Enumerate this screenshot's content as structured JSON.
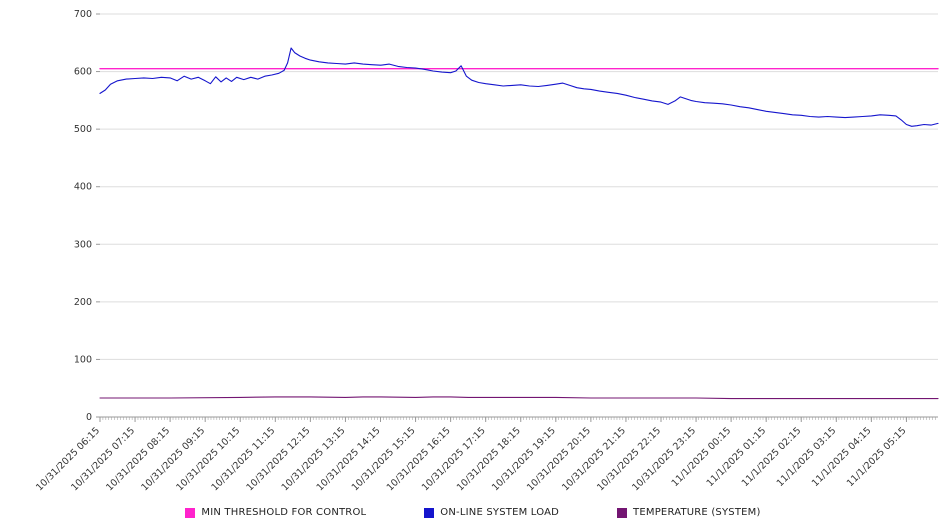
{
  "chart_data": {
    "type": "line",
    "title": "",
    "xlabel": "",
    "ylabel": "",
    "ylim": [
      0,
      700
    ],
    "yticks": [
      0,
      100,
      200,
      300,
      400,
      500,
      600,
      700
    ],
    "grid": "horizontal",
    "legend_position": "bottom",
    "x_range_hours": [
      0,
      23.9
    ],
    "minor_tick_interval_hours": 0.0833,
    "x_tick_positions_hours": [
      0,
      1,
      2,
      3,
      4,
      5,
      6,
      7,
      8,
      9,
      10,
      11,
      12,
      13,
      14,
      15,
      16,
      17,
      18,
      19,
      20,
      21,
      22,
      23
    ],
    "x_tick_labels": [
      "10/31/2025 06:15",
      "10/31/2025 07:15",
      "10/31/2025 08:15",
      "10/31/2025 09:15",
      "10/31/2025 10:15",
      "10/31/2025 11:15",
      "10/31/2025 12:15",
      "10/31/2025 13:15",
      "10/31/2025 14:15",
      "10/31/2025 15:15",
      "10/31/2025 16:15",
      "10/31/2025 17:15",
      "10/31/2025 18:15",
      "10/31/2025 19:15",
      "10/31/2025 20:15",
      "10/31/2025 21:15",
      "10/31/2025 22:15",
      "10/31/2025 23:15",
      "11/1/2025 00:15",
      "11/1/2025 01:15",
      "11/1/2025 02:15",
      "11/1/2025 03:15",
      "11/1/2025 04:15",
      "11/1/2025 05:15"
    ],
    "colors": {
      "grid": "#dddddd",
      "axis": "#999999",
      "text": "#333333"
    },
    "series": [
      {
        "name": "MIN THRESHOLD FOR CONTROL",
        "color": "#ff22cc",
        "width": 1.3,
        "points": [
          [
            0,
            605
          ],
          [
            23.9,
            605
          ]
        ]
      },
      {
        "name": "ON-LINE SYSTEM LOAD",
        "color": "#1515cd",
        "width": 1.1,
        "points": [
          [
            0,
            562
          ],
          [
            0.15,
            568
          ],
          [
            0.3,
            578
          ],
          [
            0.5,
            584
          ],
          [
            0.75,
            587
          ],
          [
            1,
            588
          ],
          [
            1.25,
            589
          ],
          [
            1.5,
            588
          ],
          [
            1.75,
            590
          ],
          [
            2,
            589
          ],
          [
            2.2,
            584
          ],
          [
            2.4,
            592
          ],
          [
            2.6,
            587
          ],
          [
            2.8,
            590
          ],
          [
            3,
            584
          ],
          [
            3.15,
            579
          ],
          [
            3.3,
            591
          ],
          [
            3.45,
            582
          ],
          [
            3.6,
            589
          ],
          [
            3.75,
            583
          ],
          [
            3.9,
            590
          ],
          [
            4.1,
            586
          ],
          [
            4.3,
            590
          ],
          [
            4.5,
            587
          ],
          [
            4.7,
            592
          ],
          [
            4.9,
            594
          ],
          [
            5.1,
            597
          ],
          [
            5.25,
            602
          ],
          [
            5.35,
            615
          ],
          [
            5.45,
            641
          ],
          [
            5.55,
            633
          ],
          [
            5.7,
            627
          ],
          [
            5.85,
            623
          ],
          [
            6,
            620
          ],
          [
            6.25,
            617
          ],
          [
            6.5,
            615
          ],
          [
            6.75,
            614
          ],
          [
            7,
            613
          ],
          [
            7.25,
            615
          ],
          [
            7.5,
            613
          ],
          [
            7.75,
            612
          ],
          [
            8,
            611
          ],
          [
            8.25,
            613
          ],
          [
            8.5,
            609
          ],
          [
            8.75,
            607
          ],
          [
            9,
            606
          ],
          [
            9.25,
            604
          ],
          [
            9.5,
            601
          ],
          [
            9.75,
            599
          ],
          [
            10,
            598
          ],
          [
            10.15,
            601
          ],
          [
            10.3,
            610
          ],
          [
            10.45,
            592
          ],
          [
            10.6,
            585
          ],
          [
            10.8,
            581
          ],
          [
            11,
            579
          ],
          [
            11.25,
            577
          ],
          [
            11.5,
            575
          ],
          [
            11.75,
            576
          ],
          [
            12,
            577
          ],
          [
            12.25,
            575
          ],
          [
            12.5,
            574
          ],
          [
            12.75,
            576
          ],
          [
            13,
            578
          ],
          [
            13.2,
            580
          ],
          [
            13.4,
            576
          ],
          [
            13.6,
            572
          ],
          [
            13.8,
            570
          ],
          [
            14,
            569
          ],
          [
            14.25,
            566
          ],
          [
            14.5,
            564
          ],
          [
            14.75,
            562
          ],
          [
            15,
            559
          ],
          [
            15.25,
            555
          ],
          [
            15.5,
            552
          ],
          [
            15.75,
            549
          ],
          [
            16,
            547
          ],
          [
            16.2,
            543
          ],
          [
            16.4,
            549
          ],
          [
            16.55,
            556
          ],
          [
            16.7,
            553
          ],
          [
            16.85,
            550
          ],
          [
            17,
            548
          ],
          [
            17.25,
            546
          ],
          [
            17.5,
            545
          ],
          [
            17.75,
            544
          ],
          [
            18,
            542
          ],
          [
            18.25,
            539
          ],
          [
            18.5,
            537
          ],
          [
            18.75,
            534
          ],
          [
            19,
            531
          ],
          [
            19.25,
            529
          ],
          [
            19.5,
            527
          ],
          [
            19.75,
            525
          ],
          [
            20,
            524
          ],
          [
            20.25,
            522
          ],
          [
            20.5,
            521
          ],
          [
            20.75,
            522
          ],
          [
            21,
            521
          ],
          [
            21.25,
            520
          ],
          [
            21.5,
            521
          ],
          [
            21.75,
            522
          ],
          [
            22,
            523
          ],
          [
            22.25,
            525
          ],
          [
            22.5,
            524
          ],
          [
            22.7,
            523
          ],
          [
            22.85,
            516
          ],
          [
            23,
            508
          ],
          [
            23.15,
            505
          ],
          [
            23.3,
            506
          ],
          [
            23.5,
            508
          ],
          [
            23.7,
            507
          ],
          [
            23.9,
            510
          ]
        ]
      },
      {
        "name": "TEMPERATURE (SYSTEM)",
        "color": "#731572",
        "width": 1.1,
        "points": [
          [
            0,
            33
          ],
          [
            2,
            33
          ],
          [
            4,
            34
          ],
          [
            5,
            35
          ],
          [
            6,
            35
          ],
          [
            7,
            34
          ],
          [
            7.5,
            35
          ],
          [
            8,
            35
          ],
          [
            9,
            34
          ],
          [
            9.5,
            35
          ],
          [
            10,
            35
          ],
          [
            10.5,
            34
          ],
          [
            11,
            34
          ],
          [
            12,
            34
          ],
          [
            13,
            34
          ],
          [
            14,
            33
          ],
          [
            15,
            33
          ],
          [
            16,
            33
          ],
          [
            17,
            33
          ],
          [
            18,
            32
          ],
          [
            19,
            32
          ],
          [
            20,
            32
          ],
          [
            21,
            32
          ],
          [
            22,
            32
          ],
          [
            23,
            32
          ],
          [
            23.9,
            32
          ]
        ]
      }
    ]
  }
}
